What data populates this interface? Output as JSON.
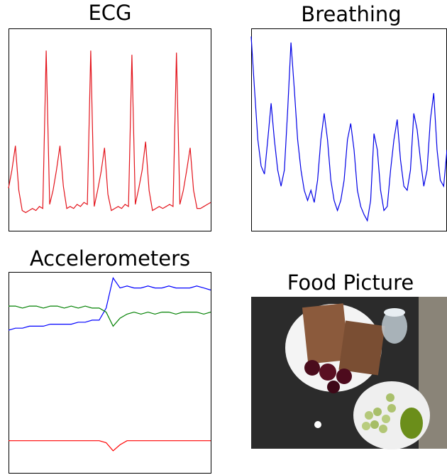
{
  "chart_data": [
    {
      "type": "line",
      "title": "ECG",
      "color": "#e3141c",
      "ylim": [
        0,
        1
      ],
      "values": [
        0.21,
        0.3,
        0.42,
        0.2,
        0.1,
        0.09,
        0.1,
        0.11,
        0.1,
        0.12,
        0.11,
        0.89,
        0.13,
        0.2,
        0.3,
        0.42,
        0.22,
        0.11,
        0.12,
        0.11,
        0.13,
        0.12,
        0.14,
        0.13,
        0.89,
        0.12,
        0.2,
        0.29,
        0.41,
        0.18,
        0.1,
        0.11,
        0.12,
        0.11,
        0.13,
        0.12,
        0.87,
        0.13,
        0.21,
        0.3,
        0.44,
        0.2,
        0.1,
        0.11,
        0.12,
        0.11,
        0.12,
        0.13,
        0.12,
        0.88,
        0.13,
        0.2,
        0.3,
        0.41,
        0.2,
        0.11,
        0.11,
        0.12,
        0.13,
        0.14
      ]
    },
    {
      "type": "line",
      "title": "Breathing",
      "color": "#0000e6",
      "ylim": [
        0,
        1
      ],
      "values": [
        0.96,
        0.7,
        0.45,
        0.32,
        0.28,
        0.45,
        0.63,
        0.45,
        0.3,
        0.22,
        0.3,
        0.6,
        0.93,
        0.7,
        0.45,
        0.3,
        0.2,
        0.15,
        0.2,
        0.14,
        0.25,
        0.45,
        0.58,
        0.45,
        0.25,
        0.15,
        0.1,
        0.15,
        0.25,
        0.45,
        0.53,
        0.4,
        0.2,
        0.12,
        0.08,
        0.05,
        0.15,
        0.48,
        0.4,
        0.2,
        0.1,
        0.12,
        0.3,
        0.45,
        0.55,
        0.35,
        0.22,
        0.2,
        0.3,
        0.58,
        0.5,
        0.35,
        0.22,
        0.3,
        0.55,
        0.68,
        0.4,
        0.25,
        0.22,
        0.4
      ]
    },
    {
      "type": "line",
      "title": "Accelerometers",
      "ylim": [
        0,
        1
      ],
      "series": [
        {
          "color": "#0000ff",
          "values": [
            0.71,
            0.72,
            0.72,
            0.73,
            0.73,
            0.73,
            0.74,
            0.74,
            0.74,
            0.74,
            0.75,
            0.75,
            0.76,
            0.76,
            0.82,
            0.97,
            0.92,
            0.93,
            0.92,
            0.92,
            0.93,
            0.92,
            0.92,
            0.93,
            0.92,
            0.92,
            0.92,
            0.93,
            0.92,
            0.91
          ]
        },
        {
          "color": "#008000",
          "values": [
            0.83,
            0.83,
            0.82,
            0.83,
            0.83,
            0.82,
            0.83,
            0.83,
            0.82,
            0.83,
            0.82,
            0.83,
            0.82,
            0.82,
            0.8,
            0.73,
            0.77,
            0.79,
            0.8,
            0.79,
            0.8,
            0.79,
            0.8,
            0.8,
            0.79,
            0.8,
            0.8,
            0.8,
            0.79,
            0.8
          ]
        },
        {
          "color": "#ff0000",
          "values": [
            0.16,
            0.16,
            0.16,
            0.16,
            0.16,
            0.16,
            0.16,
            0.16,
            0.16,
            0.16,
            0.16,
            0.16,
            0.16,
            0.16,
            0.15,
            0.11,
            0.14,
            0.16,
            0.16,
            0.16,
            0.16,
            0.16,
            0.16,
            0.16,
            0.16,
            0.16,
            0.16,
            0.16,
            0.16,
            0.16
          ]
        }
      ]
    }
  ],
  "image": {
    "title": "Food Picture"
  }
}
